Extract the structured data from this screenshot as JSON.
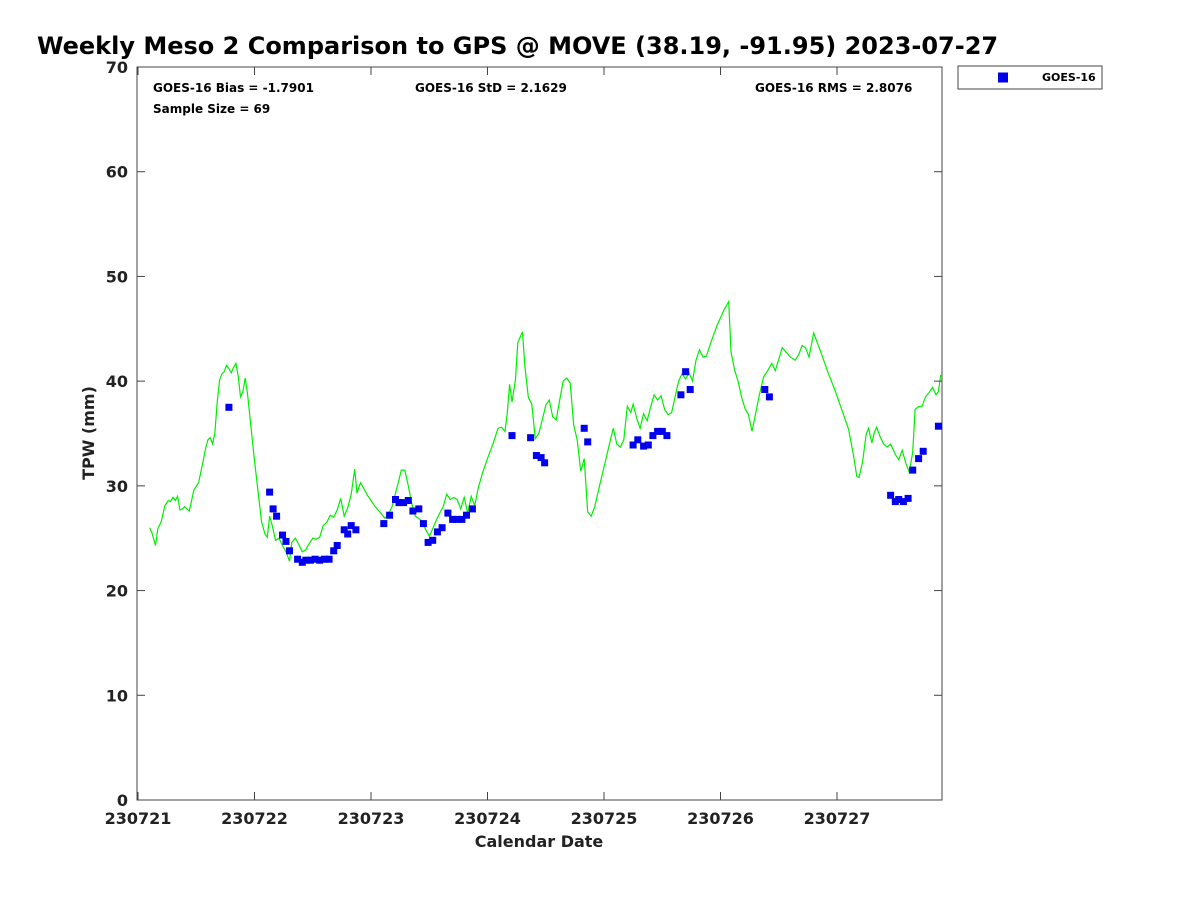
{
  "chart_data": {
    "type": "scatter",
    "title": "Weekly Meso 2 Comparison to GPS @ MOVE (38.19, -91.95) 2023-07-27",
    "xlabel": "Calendar Date",
    "ylabel": "TPW (mm)",
    "xlim": [
      "230721",
      "230727.9"
    ],
    "ylim": [
      0,
      70
    ],
    "yticks": [
      0,
      10,
      20,
      30,
      40,
      50,
      60,
      70
    ],
    "xticks": [
      "230721",
      "230722",
      "230723",
      "230724",
      "230725",
      "230726",
      "230727"
    ],
    "grid": false,
    "legend_position": "outside-top-right",
    "stats": {
      "bias": "GOES-16 Bias = -1.7901",
      "std": "GOES-16 StD = 2.1629",
      "rms": "GOES-16 RMS = 2.8076",
      "sample": "Sample Size = 69"
    },
    "series": [
      {
        "name": "GOES-16",
        "kind": "scatter",
        "color": "#0000ee",
        "marker": "square",
        "points": [
          [
            0.78,
            37.5
          ],
          [
            1.13,
            29.4
          ],
          [
            1.16,
            27.8
          ],
          [
            1.19,
            27.1
          ],
          [
            1.24,
            25.3
          ],
          [
            1.27,
            24.7
          ],
          [
            1.3,
            23.8
          ],
          [
            1.37,
            23.0
          ],
          [
            1.41,
            22.7
          ],
          [
            1.44,
            22.9
          ],
          [
            1.48,
            22.9
          ],
          [
            1.52,
            23.0
          ],
          [
            1.56,
            22.9
          ],
          [
            1.6,
            23.0
          ],
          [
            1.64,
            23.0
          ],
          [
            1.68,
            23.8
          ],
          [
            1.71,
            24.3
          ],
          [
            1.77,
            25.8
          ],
          [
            1.8,
            25.4
          ],
          [
            1.83,
            26.2
          ],
          [
            1.87,
            25.8
          ],
          [
            2.11,
            26.4
          ],
          [
            2.16,
            27.2
          ],
          [
            2.21,
            28.7
          ],
          [
            2.24,
            28.4
          ],
          [
            2.28,
            28.4
          ],
          [
            2.32,
            28.6
          ],
          [
            2.36,
            27.6
          ],
          [
            2.41,
            27.8
          ],
          [
            2.45,
            26.4
          ],
          [
            2.49,
            24.6
          ],
          [
            2.53,
            24.8
          ],
          [
            2.57,
            25.6
          ],
          [
            2.61,
            26.0
          ],
          [
            2.66,
            27.4
          ],
          [
            2.7,
            26.8
          ],
          [
            2.74,
            26.8
          ],
          [
            2.78,
            26.8
          ],
          [
            2.82,
            27.2
          ],
          [
            2.87,
            27.8
          ],
          [
            3.21,
            34.8
          ],
          [
            3.37,
            34.6
          ],
          [
            3.42,
            32.9
          ],
          [
            3.46,
            32.7
          ],
          [
            3.49,
            32.2
          ],
          [
            3.83,
            35.5
          ],
          [
            3.86,
            34.2
          ],
          [
            4.25,
            33.9
          ],
          [
            4.29,
            34.4
          ],
          [
            4.34,
            33.8
          ],
          [
            4.38,
            33.9
          ],
          [
            4.42,
            34.8
          ],
          [
            4.46,
            35.2
          ],
          [
            4.5,
            35.2
          ],
          [
            4.54,
            34.8
          ],
          [
            4.66,
            38.7
          ],
          [
            4.7,
            40.9
          ],
          [
            4.74,
            39.2
          ],
          [
            5.38,
            39.2
          ],
          [
            5.42,
            38.5
          ],
          [
            6.46,
            29.1
          ],
          [
            6.5,
            28.5
          ],
          [
            6.53,
            28.7
          ],
          [
            6.57,
            28.5
          ],
          [
            6.61,
            28.8
          ],
          [
            6.65,
            31.5
          ],
          [
            6.7,
            32.6
          ],
          [
            6.74,
            33.3
          ],
          [
            6.87,
            35.7
          ]
        ]
      },
      {
        "name": "GPS",
        "kind": "line",
        "color": "#00ee00",
        "points": [
          [
            0.1,
            26.0
          ],
          [
            0.12,
            25.5
          ],
          [
            0.15,
            24.3
          ],
          [
            0.17,
            25.9
          ],
          [
            0.2,
            26.6
          ],
          [
            0.23,
            28.1
          ],
          [
            0.26,
            28.6
          ],
          [
            0.28,
            28.5
          ],
          [
            0.3,
            28.9
          ],
          [
            0.32,
            28.6
          ],
          [
            0.34,
            29.0
          ],
          [
            0.36,
            27.7
          ],
          [
            0.38,
            27.8
          ],
          [
            0.4,
            28.0
          ],
          [
            0.42,
            27.8
          ],
          [
            0.44,
            27.6
          ],
          [
            0.46,
            28.6
          ],
          [
            0.48,
            29.6
          ],
          [
            0.52,
            30.3
          ],
          [
            0.56,
            32.4
          ],
          [
            0.58,
            33.6
          ],
          [
            0.6,
            34.4
          ],
          [
            0.62,
            34.6
          ],
          [
            0.64,
            34.0
          ],
          [
            0.66,
            35.1
          ],
          [
            0.68,
            38.0
          ],
          [
            0.7,
            40.1
          ],
          [
            0.72,
            40.7
          ],
          [
            0.74,
            40.9
          ],
          [
            0.76,
            41.5
          ],
          [
            0.78,
            41.2
          ],
          [
            0.8,
            40.8
          ],
          [
            0.82,
            41.3
          ],
          [
            0.84,
            41.7
          ],
          [
            0.86,
            40.5
          ],
          [
            0.88,
            38.5
          ],
          [
            0.9,
            39.0
          ],
          [
            0.92,
            40.3
          ],
          [
            0.94,
            38.8
          ],
          [
            0.97,
            35.6
          ],
          [
            1.0,
            32.4
          ],
          [
            1.03,
            29.5
          ],
          [
            1.06,
            26.6
          ],
          [
            1.09,
            25.4
          ],
          [
            1.11,
            25.1
          ],
          [
            1.13,
            27.1
          ],
          [
            1.15,
            26.3
          ],
          [
            1.18,
            24.8
          ],
          [
            1.21,
            25.0
          ],
          [
            1.24,
            24.3
          ],
          [
            1.27,
            23.7
          ],
          [
            1.3,
            22.8
          ],
          [
            1.32,
            24.6
          ],
          [
            1.35,
            25.0
          ],
          [
            1.38,
            24.4
          ],
          [
            1.41,
            23.7
          ],
          [
            1.44,
            23.9
          ],
          [
            1.47,
            24.5
          ],
          [
            1.5,
            25.0
          ],
          [
            1.53,
            24.9
          ],
          [
            1.56,
            25.1
          ],
          [
            1.59,
            26.2
          ],
          [
            1.62,
            26.5
          ],
          [
            1.65,
            27.2
          ],
          [
            1.68,
            27.0
          ],
          [
            1.71,
            27.7
          ],
          [
            1.74,
            28.8
          ],
          [
            1.77,
            27.1
          ],
          [
            1.8,
            27.9
          ],
          [
            1.83,
            29.2
          ],
          [
            1.86,
            31.6
          ],
          [
            1.88,
            29.3
          ],
          [
            1.91,
            30.3
          ],
          [
            1.94,
            29.7
          ],
          [
            1.97,
            29.1
          ],
          [
            2.0,
            28.6
          ],
          [
            2.03,
            28.1
          ],
          [
            2.06,
            27.7
          ],
          [
            2.09,
            27.3
          ],
          [
            2.12,
            26.9
          ],
          [
            2.15,
            27.3
          ],
          [
            2.18,
            28.0
          ],
          [
            2.21,
            29.3
          ],
          [
            2.24,
            30.6
          ],
          [
            2.26,
            31.5
          ],
          [
            2.29,
            31.5
          ],
          [
            2.32,
            30.0
          ],
          [
            2.35,
            28.3
          ],
          [
            2.38,
            27.1
          ],
          [
            2.41,
            26.9
          ],
          [
            2.44,
            26.6
          ],
          [
            2.47,
            25.8
          ],
          [
            2.5,
            25.2
          ],
          [
            2.53,
            25.9
          ],
          [
            2.56,
            26.7
          ],
          [
            2.59,
            27.4
          ],
          [
            2.62,
            28.0
          ],
          [
            2.65,
            29.2
          ],
          [
            2.68,
            28.7
          ],
          [
            2.71,
            28.9
          ],
          [
            2.74,
            28.7
          ],
          [
            2.77,
            27.8
          ],
          [
            2.8,
            28.9
          ],
          [
            2.83,
            27.4
          ],
          [
            2.86,
            29.0
          ],
          [
            2.89,
            28.1
          ],
          [
            2.92,
            29.8
          ],
          [
            2.96,
            31.3
          ],
          [
            3.0,
            32.6
          ],
          [
            3.05,
            34.1
          ],
          [
            3.09,
            35.5
          ],
          [
            3.12,
            35.6
          ],
          [
            3.15,
            35.2
          ],
          [
            3.17,
            37.0
          ],
          [
            3.19,
            39.7
          ],
          [
            3.21,
            38.0
          ],
          [
            3.24,
            40.2
          ],
          [
            3.26,
            43.7
          ],
          [
            3.28,
            44.2
          ],
          [
            3.3,
            44.7
          ],
          [
            3.32,
            41.5
          ],
          [
            3.35,
            38.5
          ],
          [
            3.38,
            37.8
          ],
          [
            3.41,
            34.5
          ],
          [
            3.44,
            35.0
          ],
          [
            3.47,
            36.3
          ],
          [
            3.5,
            37.7
          ],
          [
            3.53,
            38.2
          ],
          [
            3.56,
            36.6
          ],
          [
            3.59,
            36.3
          ],
          [
            3.62,
            38.2
          ],
          [
            3.65,
            40.0
          ],
          [
            3.68,
            40.3
          ],
          [
            3.71,
            39.8
          ],
          [
            3.74,
            35.8
          ],
          [
            3.77,
            34.4
          ],
          [
            3.8,
            31.4
          ],
          [
            3.83,
            32.6
          ],
          [
            3.86,
            27.5
          ],
          [
            3.89,
            27.1
          ],
          [
            3.92,
            28.0
          ],
          [
            3.96,
            29.9
          ],
          [
            4.0,
            31.8
          ],
          [
            4.04,
            33.7
          ],
          [
            4.08,
            35.5
          ],
          [
            4.11,
            34.0
          ],
          [
            4.14,
            33.7
          ],
          [
            4.17,
            34.4
          ],
          [
            4.2,
            37.6
          ],
          [
            4.23,
            37.0
          ],
          [
            4.25,
            37.8
          ],
          [
            4.28,
            36.5
          ],
          [
            4.31,
            35.5
          ],
          [
            4.34,
            36.9
          ],
          [
            4.37,
            36.2
          ],
          [
            4.4,
            37.5
          ],
          [
            4.43,
            38.7
          ],
          [
            4.46,
            38.2
          ],
          [
            4.49,
            38.6
          ],
          [
            4.52,
            37.3
          ],
          [
            4.55,
            36.8
          ],
          [
            4.58,
            37.0
          ],
          [
            4.61,
            38.5
          ],
          [
            4.64,
            40.0
          ],
          [
            4.67,
            40.7
          ],
          [
            4.7,
            40.2
          ],
          [
            4.73,
            40.8
          ],
          [
            4.76,
            40.0
          ],
          [
            4.79,
            42.0
          ],
          [
            4.82,
            43.0
          ],
          [
            4.85,
            42.3
          ],
          [
            4.88,
            42.4
          ],
          [
            4.92,
            43.8
          ],
          [
            4.97,
            45.3
          ],
          [
            5.03,
            46.8
          ],
          [
            5.07,
            47.6
          ],
          [
            5.09,
            42.8
          ],
          [
            5.12,
            41.1
          ],
          [
            5.15,
            40.0
          ],
          [
            5.18,
            38.5
          ],
          [
            5.21,
            37.4
          ],
          [
            5.24,
            36.8
          ],
          [
            5.27,
            35.2
          ],
          [
            5.3,
            36.8
          ],
          [
            5.33,
            38.5
          ],
          [
            5.37,
            40.4
          ],
          [
            5.41,
            41.1
          ],
          [
            5.44,
            41.7
          ],
          [
            5.47,
            41.0
          ],
          [
            5.5,
            42.1
          ],
          [
            5.53,
            43.2
          ],
          [
            5.56,
            42.8
          ],
          [
            5.6,
            42.3
          ],
          [
            5.64,
            42.0
          ],
          [
            5.67,
            42.5
          ],
          [
            5.7,
            43.4
          ],
          [
            5.73,
            43.2
          ],
          [
            5.76,
            42.3
          ],
          [
            5.8,
            44.6
          ],
          [
            5.86,
            42.8
          ],
          [
            5.92,
            40.9
          ],
          [
            5.98,
            39.2
          ],
          [
            6.04,
            37.3
          ],
          [
            6.1,
            35.4
          ],
          [
            6.14,
            33.0
          ],
          [
            6.17,
            30.9
          ],
          [
            6.19,
            30.8
          ],
          [
            6.22,
            32.3
          ],
          [
            6.25,
            34.9
          ],
          [
            6.27,
            35.5
          ],
          [
            6.3,
            34.1
          ],
          [
            6.32,
            35.1
          ],
          [
            6.34,
            35.6
          ],
          [
            6.37,
            34.7
          ],
          [
            6.4,
            34.0
          ],
          [
            6.43,
            33.7
          ],
          [
            6.46,
            34.0
          ],
          [
            6.5,
            33.0
          ],
          [
            6.53,
            32.5
          ],
          [
            6.56,
            33.4
          ],
          [
            6.59,
            32.2
          ],
          [
            6.62,
            31.3
          ],
          [
            6.65,
            33.2
          ],
          [
            6.67,
            37.3
          ],
          [
            6.7,
            37.6
          ],
          [
            6.73,
            37.6
          ],
          [
            6.76,
            38.5
          ],
          [
            6.79,
            38.9
          ],
          [
            6.82,
            39.4
          ],
          [
            6.85,
            38.7
          ],
          [
            6.87,
            39.0
          ],
          [
            6.89,
            40.6
          ]
        ]
      }
    ]
  }
}
